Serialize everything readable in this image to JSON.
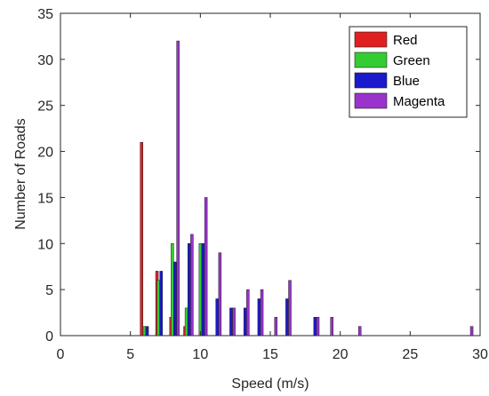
{
  "chart_data": {
    "type": "bar",
    "title": "",
    "xlabel": "Speed (m/s)",
    "ylabel": "Number of Roads",
    "xlim": [
      0,
      30
    ],
    "ylim": [
      0,
      35
    ],
    "xticks": [
      0,
      5,
      10,
      15,
      20,
      25,
      30
    ],
    "yticks": [
      0,
      5,
      10,
      15,
      20,
      25,
      30,
      35
    ],
    "grid": false,
    "legend_position": "top-right",
    "series": [
      {
        "name": "Red",
        "color": "#e02020",
        "points": [
          {
            "x": 5.8,
            "y": 21
          },
          {
            "x": 6.9,
            "y": 7
          },
          {
            "x": 7.9,
            "y": 2
          },
          {
            "x": 8.9,
            "y": 1
          }
        ]
      },
      {
        "name": "Green",
        "color": "#33cc33",
        "points": [
          {
            "x": 6.0,
            "y": 1
          },
          {
            "x": 7.0,
            "y": 6
          },
          {
            "x": 8.0,
            "y": 10
          },
          {
            "x": 9.0,
            "y": 3
          },
          {
            "x": 10.0,
            "y": 10
          }
        ]
      },
      {
        "name": "Blue",
        "color": "#1a1acc",
        "points": [
          {
            "x": 6.2,
            "y": 1
          },
          {
            "x": 7.2,
            "y": 7
          },
          {
            "x": 8.2,
            "y": 8
          },
          {
            "x": 9.2,
            "y": 10
          },
          {
            "x": 10.2,
            "y": 10
          },
          {
            "x": 11.2,
            "y": 4
          },
          {
            "x": 12.2,
            "y": 3
          },
          {
            "x": 13.2,
            "y": 3
          },
          {
            "x": 14.2,
            "y": 4
          },
          {
            "x": 16.2,
            "y": 4
          },
          {
            "x": 18.2,
            "y": 2
          }
        ]
      },
      {
        "name": "Magenta",
        "color": "#9933cc",
        "points": [
          {
            "x": 8.4,
            "y": 32
          },
          {
            "x": 9.4,
            "y": 11
          },
          {
            "x": 10.4,
            "y": 15
          },
          {
            "x": 11.4,
            "y": 9
          },
          {
            "x": 12.4,
            "y": 3
          },
          {
            "x": 13.4,
            "y": 5
          },
          {
            "x": 14.4,
            "y": 5
          },
          {
            "x": 15.4,
            "y": 2
          },
          {
            "x": 16.4,
            "y": 6
          },
          {
            "x": 18.4,
            "y": 2
          },
          {
            "x": 19.4,
            "y": 2
          },
          {
            "x": 21.4,
            "y": 1
          },
          {
            "x": 29.4,
            "y": 1
          }
        ]
      }
    ]
  }
}
